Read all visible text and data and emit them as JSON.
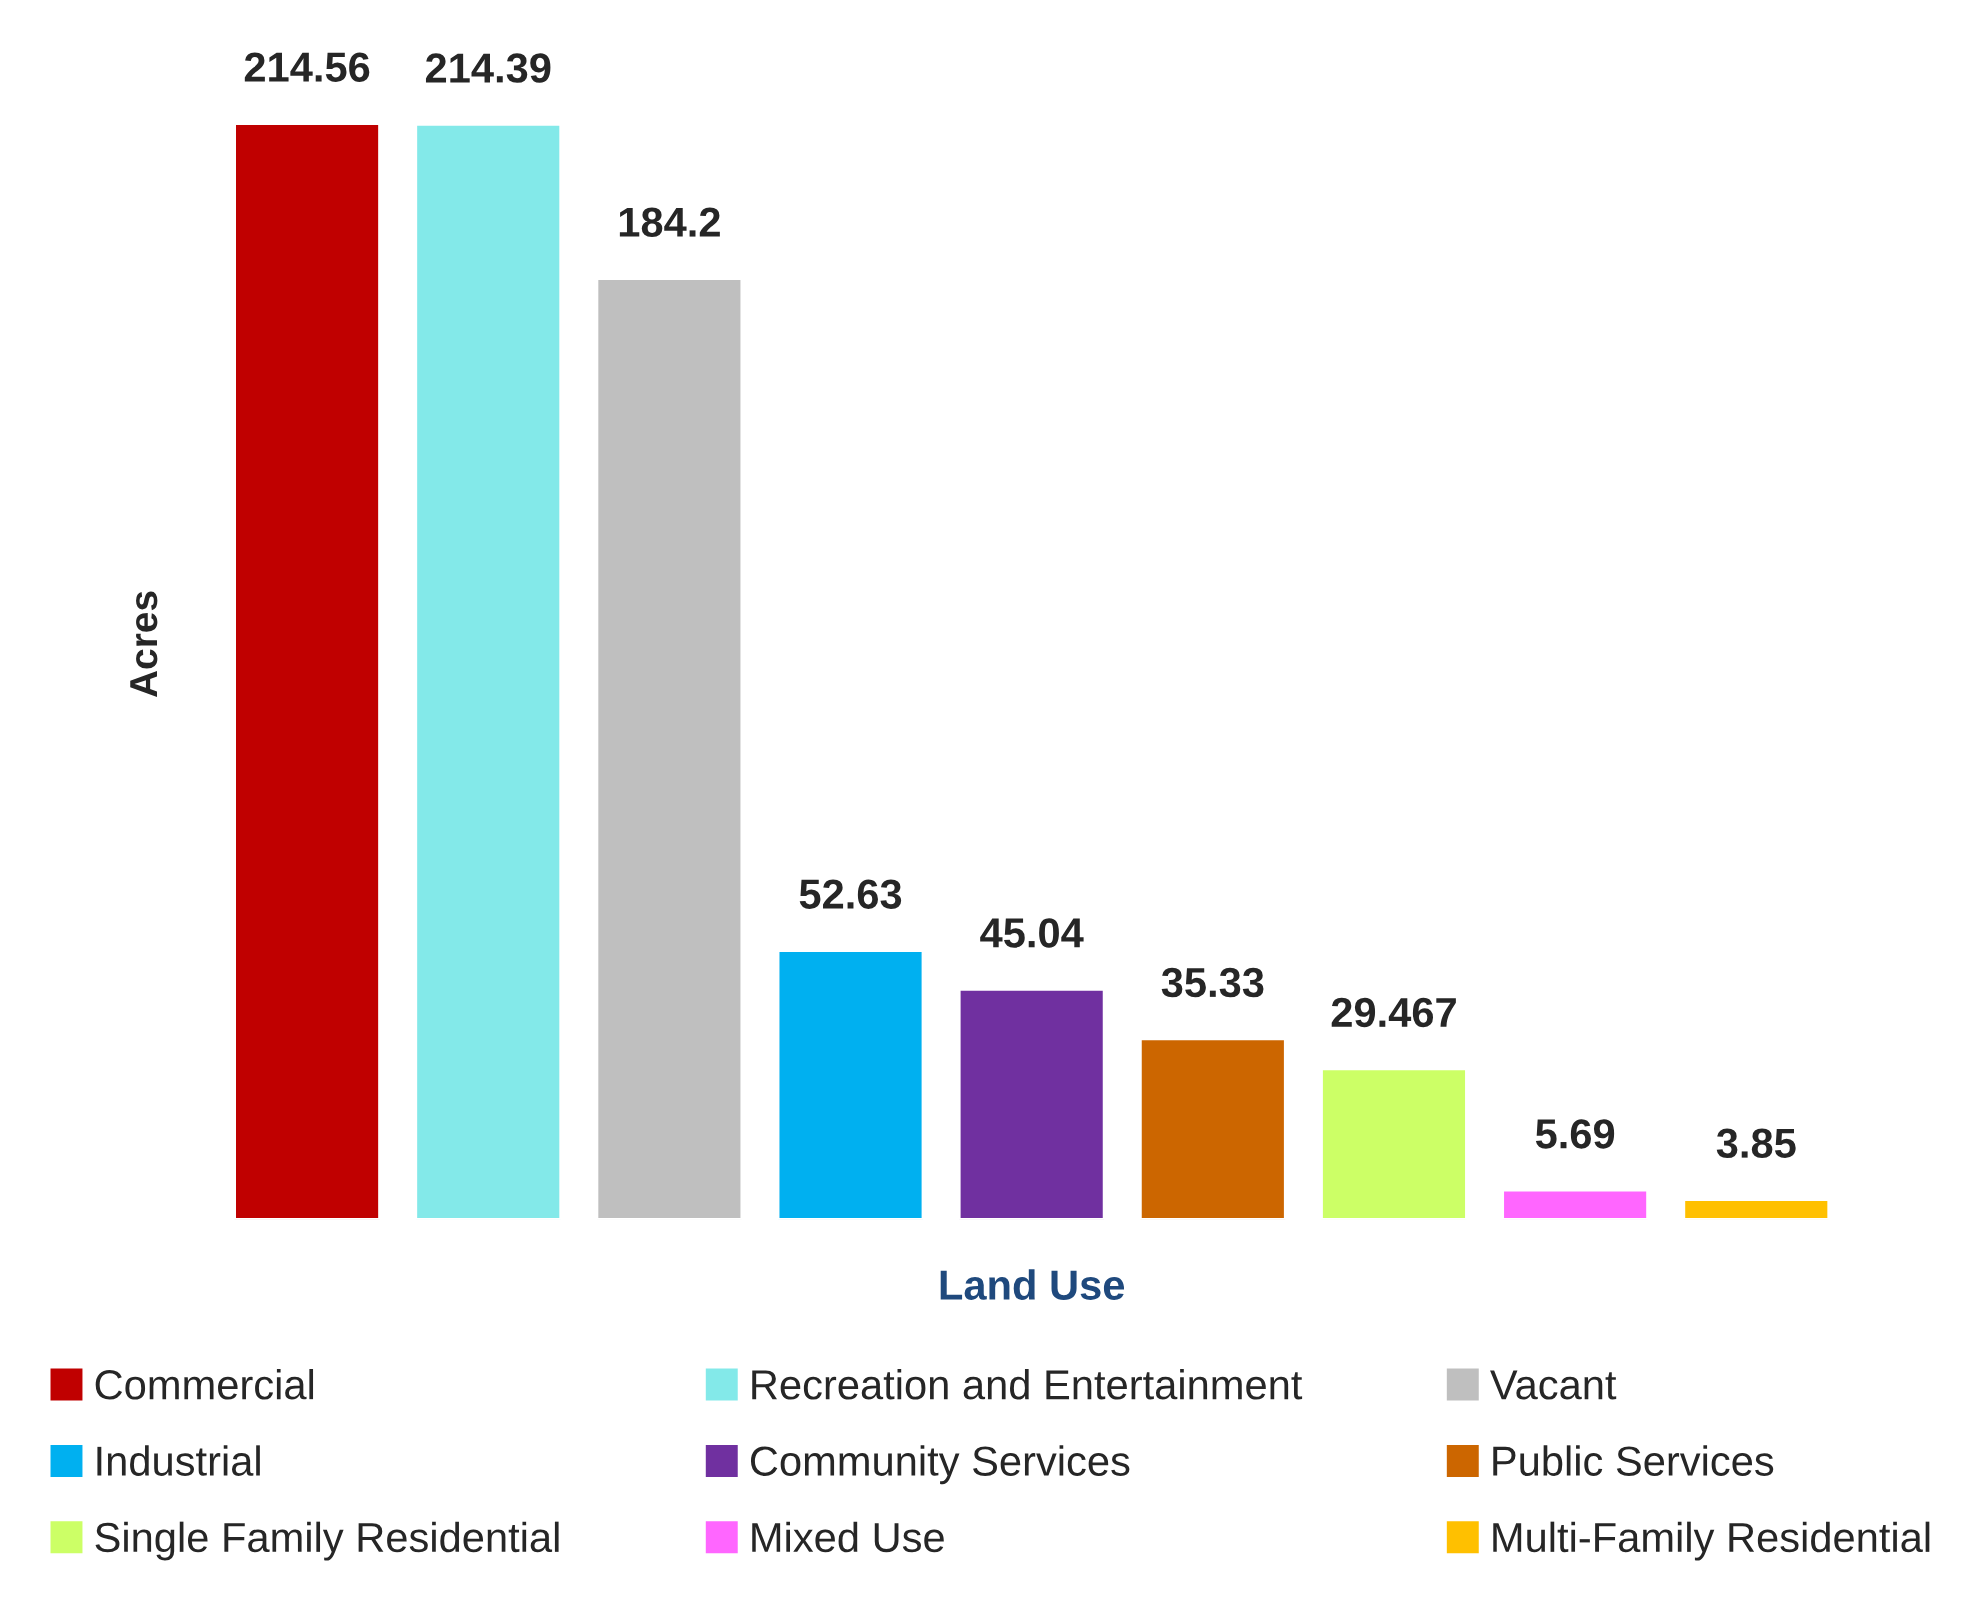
{
  "chart_data": {
    "type": "bar",
    "xlabel": "Land Use",
    "ylabel": "Acres",
    "categories": [
      null,
      null,
      null,
      null,
      null,
      null,
      null,
      null,
      null
    ],
    "stacked": true,
    "series": [
      {
        "name": "Commercial",
        "color": "#c00000",
        "values": [
          214.56,
          null,
          null,
          null,
          null,
          null,
          null,
          null,
          null
        ]
      },
      {
        "name": "Recreation and Entertainment",
        "color": "#83e9e9",
        "values": [
          null,
          214.39,
          null,
          null,
          null,
          null,
          null,
          null,
          null
        ]
      },
      {
        "name": "Vacant",
        "color": "#bfbfbf",
        "values": [
          null,
          null,
          184.2,
          null,
          null,
          null,
          null,
          null,
          null
        ]
      },
      {
        "name": "Industrial",
        "color": "#00b0f0",
        "values": [
          null,
          null,
          null,
          52.63,
          null,
          null,
          null,
          null,
          null
        ]
      },
      {
        "name": "Community Services",
        "color": "#7030a0",
        "values": [
          null,
          null,
          null,
          null,
          45.04,
          null,
          null,
          null,
          null
        ]
      },
      {
        "name": "Public Services",
        "color": "#cc6600",
        "values": [
          null,
          null,
          null,
          null,
          null,
          35.33,
          null,
          null,
          null
        ]
      },
      {
        "name": "Single Family Residential",
        "color": "#ccff66",
        "values": [
          null,
          null,
          null,
          null,
          null,
          null,
          29.467,
          null,
          null
        ]
      },
      {
        "name": "Mixed Use",
        "color": "#ff66ff",
        "values": [
          null,
          null,
          null,
          null,
          null,
          null,
          null,
          5.69,
          null
        ]
      },
      {
        "name": "Multi-Family Residential",
        "color": "#ffc000",
        "values": [
          null,
          null,
          null,
          null,
          null,
          null,
          null,
          null,
          3.85
        ]
      }
    ],
    "data_labels": true,
    "legend": "bottom",
    "grid": false,
    "tick_labels": false
  }
}
